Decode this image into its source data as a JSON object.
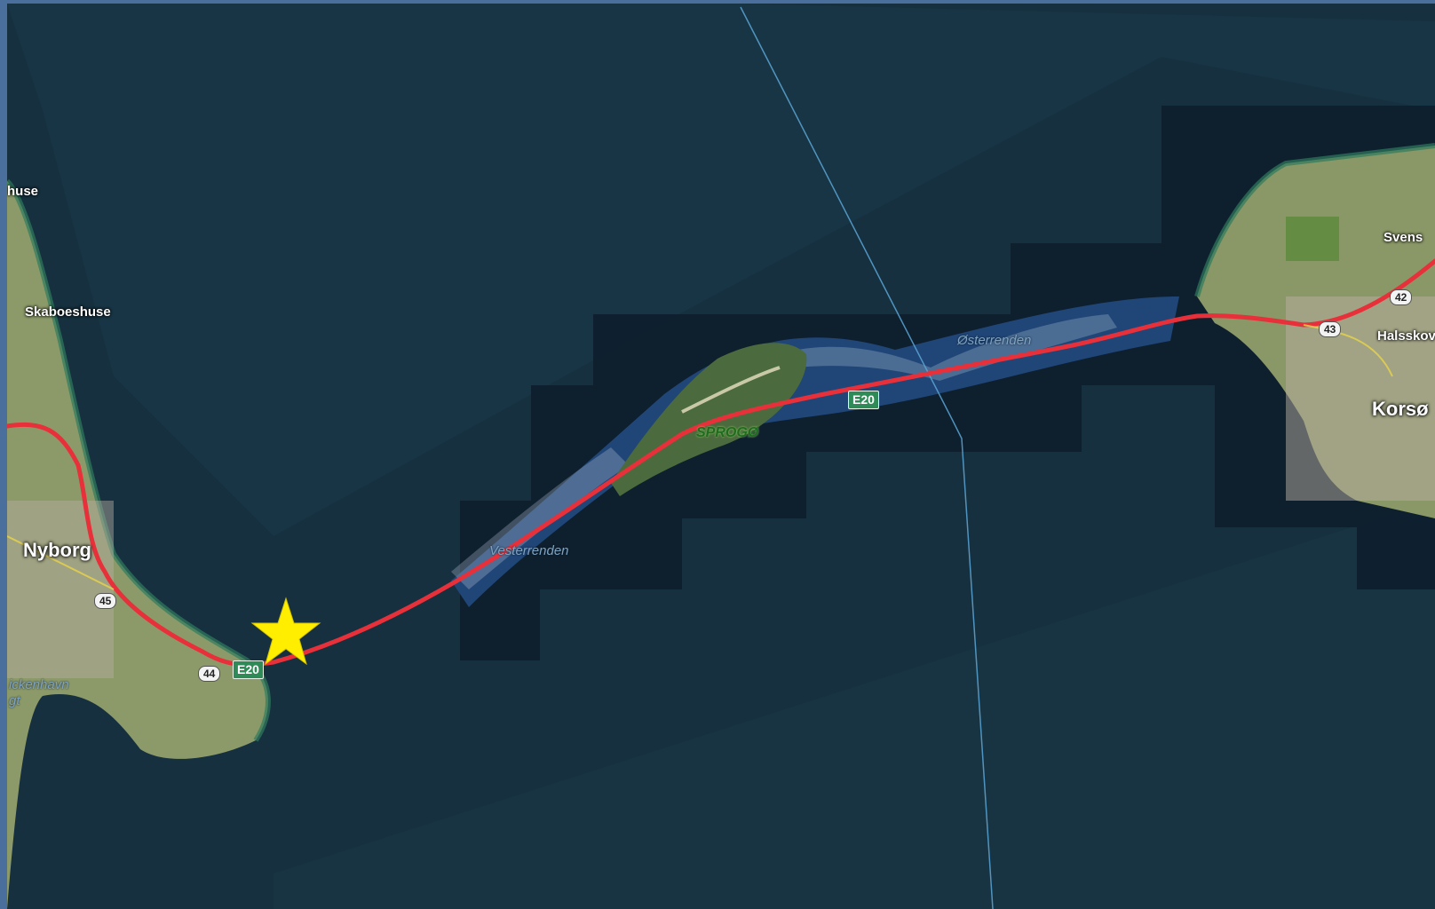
{
  "map": {
    "labels": {
      "huse": "huse",
      "skaboeshuse": "Skaboeshuse",
      "nyborg": "Nyborg",
      "ickenhavn": "ickenhavn",
      "gt": "gt",
      "vesterrenden": "Vesterrenden",
      "sprogo": "SPROGØ",
      "osterrenden": "Østerrenden",
      "svens": "Svens",
      "halsskov": "Halsskov",
      "korso": "Korsø"
    },
    "road_shields": {
      "e20_west": "E20",
      "e20_east": "E20",
      "r44": "44",
      "r45": "45",
      "r43": "43",
      "r42": "42"
    },
    "marker": {
      "type": "star",
      "color": "#ffee00"
    },
    "colors": {
      "road": "#e8303a",
      "sea": "#16303f",
      "channel": "#234c84",
      "land": "#8c9a6a",
      "frame": "#4a6f9c"
    }
  }
}
